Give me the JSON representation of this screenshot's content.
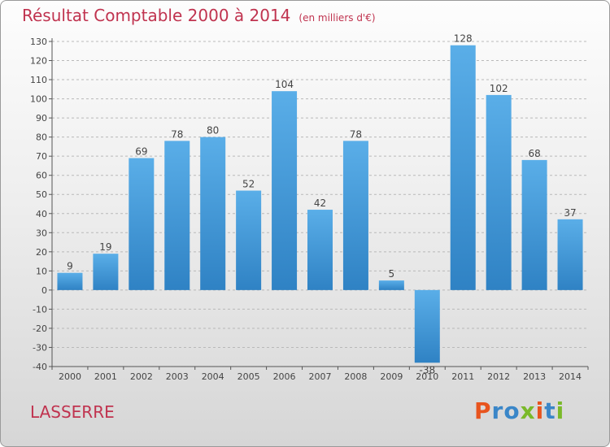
{
  "title": "Résultat Comptable 2000 à 2014",
  "subtitle": "(en milliers d'€)",
  "place": "LASSERRE",
  "brand": {
    "text": "Proxiti",
    "letter_colors": [
      "#e8541e",
      "#3a86c8",
      "#3a86c8",
      "#7ab929",
      "#e8541e",
      "#3a86c8",
      "#7ab929"
    ]
  },
  "colors": {
    "bar_top": "#5aaee8",
    "bar_bottom": "#2f82c4",
    "title": "#c0334f",
    "grid": "#b9b9b9"
  },
  "chart_data": {
    "type": "bar",
    "categories": [
      "2000",
      "2001",
      "2002",
      "2003",
      "2004",
      "2005",
      "2006",
      "2007",
      "2008",
      "2009",
      "2010",
      "2011",
      "2012",
      "2013",
      "2014"
    ],
    "values": [
      9,
      19,
      69,
      78,
      80,
      52,
      104,
      42,
      78,
      5,
      -38,
      128,
      102,
      68,
      37
    ],
    "ylim": [
      -40,
      130
    ],
    "yticks": [
      130,
      120,
      110,
      100,
      90,
      80,
      70,
      60,
      50,
      40,
      30,
      20,
      10,
      0,
      -10,
      -20,
      -30,
      -40
    ],
    "grid": true,
    "grid_style": "dashed-horizontal",
    "data_labels": true
  }
}
